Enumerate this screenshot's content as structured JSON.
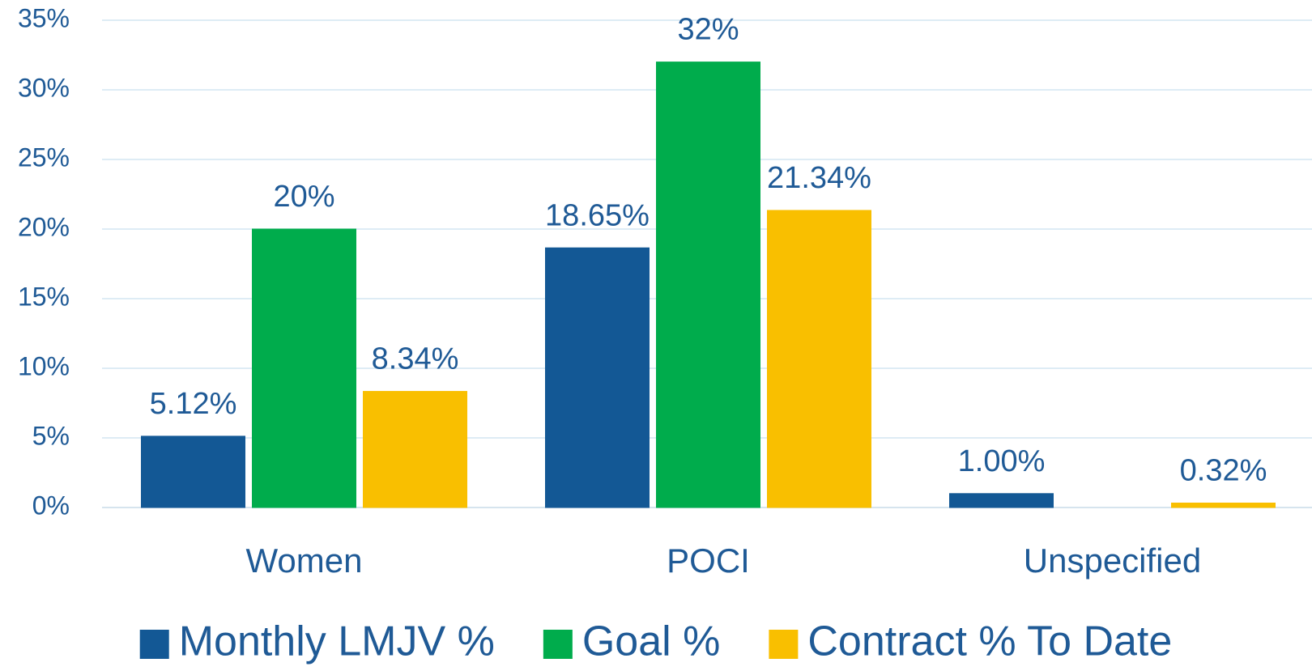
{
  "chart_data": {
    "type": "bar",
    "categories": [
      "Women",
      "POCI",
      "Unspecified"
    ],
    "series": [
      {
        "name": "Monthly LMJV %",
        "color": "#135895",
        "values": [
          5.12,
          18.65,
          1.0
        ],
        "value_labels": [
          "5.12%",
          "18.65%",
          "1.00%"
        ]
      },
      {
        "name": "Goal %",
        "color": "#00ac4c",
        "values": [
          20,
          32,
          null
        ],
        "value_labels": [
          "20%",
          "32%",
          null
        ]
      },
      {
        "name": "Contract % To Date",
        "color": "#f9bf00",
        "values": [
          8.34,
          21.34,
          0.32
        ],
        "value_labels": [
          "8.34%",
          "21.34%",
          "0.32%"
        ]
      }
    ],
    "ylim": [
      0,
      35
    ],
    "yticks": [
      {
        "value": 0,
        "label": "0%"
      },
      {
        "value": 5,
        "label": "5%"
      },
      {
        "value": 10,
        "label": "10%"
      },
      {
        "value": 15,
        "label": "15%"
      },
      {
        "value": 20,
        "label": "20%"
      },
      {
        "value": 25,
        "label": "25%"
      },
      {
        "value": 30,
        "label": "30%"
      },
      {
        "value": 35,
        "label": "35%"
      }
    ],
    "grid": true,
    "legend": "bottom"
  }
}
